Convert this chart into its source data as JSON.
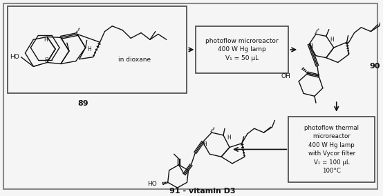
{
  "background_color": "#f5f5f5",
  "fig_width": 5.54,
  "fig_height": 2.84,
  "outer_border_color": "#888888",
  "box_edge_color": "#444444",
  "text_color": "#111111",
  "arrow_color": "#111111",
  "bond_color": "#111111",
  "rxn1_text": "photoflow microreactor\n400 W Hg lamp\nV₁ = 50 μL",
  "rxn2_text": "photoflow thermal\nmicroreactor\n400 W Hg lamp\nwith Vycor filter\nV₁ = 100 μL\n100°C",
  "label89": "89",
  "label90": "90",
  "label91": "91 - vitamin D3",
  "in_dioxane": "in dioxane"
}
